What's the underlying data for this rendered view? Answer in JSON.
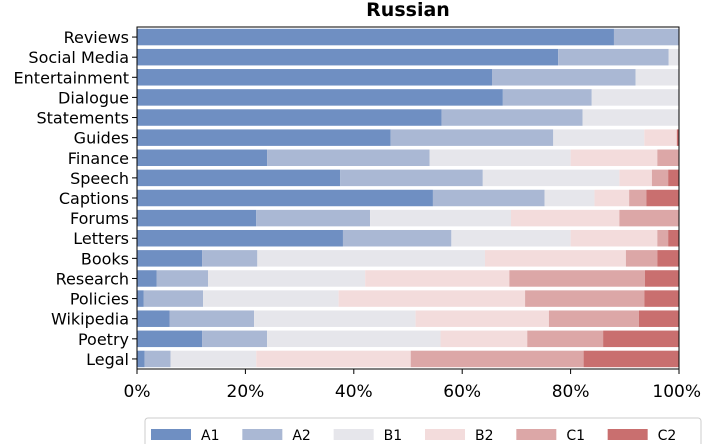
{
  "chart_data": {
    "type": "bar",
    "orientation": "horizontal",
    "stacked": true,
    "title": "Russian",
    "xlabel": "",
    "ylabel": "",
    "xlim": [
      0,
      100
    ],
    "x_ticks": [
      {
        "value": 0,
        "label": "0%"
      },
      {
        "value": 20,
        "label": "20%"
      },
      {
        "value": 40,
        "label": "40%"
      },
      {
        "value": 60,
        "label": "60%"
      },
      {
        "value": 80,
        "label": "80%"
      },
      {
        "value": 100,
        "label": "100%"
      }
    ],
    "legend_position": "bottom-center",
    "categories": [
      "Reviews",
      "Social Media",
      "Entertainment",
      "Dialogue",
      "Statements",
      "Guides",
      "Finance",
      "Speech",
      "Captions",
      "Forums",
      "Letters",
      "Books",
      "Research",
      "Policies",
      "Wikipedia",
      "Poetry",
      "Legal"
    ],
    "series": [
      {
        "name": "A1",
        "color": "#6f8fc2",
        "values": [
          88.0,
          77.7,
          65.5,
          67.5,
          56.2,
          46.8,
          24.0,
          37.5,
          54.6,
          22.0,
          38.0,
          12.0,
          3.6,
          1.2,
          6.0,
          12.0,
          1.4
        ]
      },
      {
        "name": "A2",
        "color": "#aab8d4",
        "values": [
          12.0,
          20.4,
          26.5,
          16.4,
          26.0,
          30.0,
          30.0,
          26.3,
          20.6,
          21.0,
          20.0,
          10.2,
          9.5,
          11.0,
          15.6,
          12.0,
          4.8
        ]
      },
      {
        "name": "B1",
        "color": "#e6e6eb",
        "values": [
          0.0,
          1.9,
          8.0,
          16.1,
          17.8,
          16.8,
          26.0,
          25.2,
          9.2,
          26.0,
          22.0,
          42.0,
          29.0,
          25.0,
          29.8,
          32.0,
          15.8
        ]
      },
      {
        "name": "B2",
        "color": "#f3dcdc",
        "values": [
          0.0,
          0.0,
          0.0,
          0.0,
          0.0,
          6.0,
          16.0,
          6.0,
          6.4,
          20.0,
          16.0,
          26.0,
          26.6,
          34.4,
          24.6,
          16.0,
          28.5
        ]
      },
      {
        "name": "C1",
        "color": "#dca7a7",
        "values": [
          0.0,
          0.0,
          0.0,
          0.0,
          0.0,
          0.0,
          4.0,
          3.0,
          3.2,
          11.0,
          2.0,
          5.8,
          25.0,
          22.0,
          16.6,
          14.0,
          31.9
        ]
      },
      {
        "name": "C2",
        "color": "#c96f6f",
        "values": [
          0.0,
          0.0,
          0.0,
          0.0,
          0.0,
          0.4,
          0.0,
          2.0,
          6.0,
          0.0,
          2.0,
          4.0,
          6.3,
          6.4,
          7.4,
          14.0,
          17.6
        ]
      }
    ]
  }
}
